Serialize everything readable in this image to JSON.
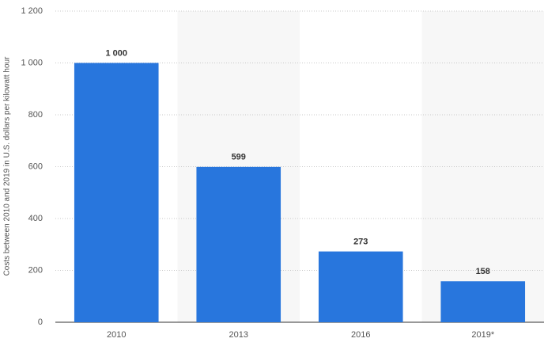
{
  "chart_data": {
    "type": "bar",
    "y_label": "Costs between 2010 and 2019 in U.S. dollars per kilowatt hour",
    "categories": [
      "2010",
      "2013",
      "2016",
      "2019*"
    ],
    "values": [
      1000,
      599,
      273,
      158
    ],
    "value_labels": [
      "1 000",
      "599",
      "273",
      "158"
    ],
    "color": "#2876dd",
    "ylim": [
      0,
      1200
    ],
    "yticks": [
      0,
      200,
      400,
      600,
      800,
      {
        "value": 1000,
        "label": "1 000"
      },
      {
        "value": 1200,
        "label": "1 200"
      }
    ],
    "grid": true
  }
}
